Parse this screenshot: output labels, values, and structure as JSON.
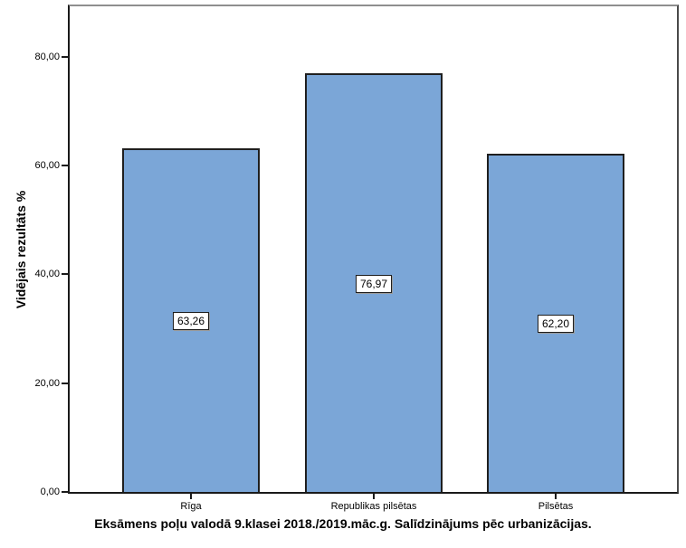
{
  "chart_data": {
    "type": "bar",
    "title": "Eksāmens poļu valodā 9.klasei 2018./2019.māc.g. Salīdzinājums pēc urbanizācijas.",
    "ylabel": "Vidējais rezultāts %",
    "xlabel": "",
    "categories": [
      "Rīga",
      "Republikas pilsētas",
      "Pilsētas"
    ],
    "values": [
      63.26,
      76.97,
      62.2
    ],
    "value_labels": [
      "63,26",
      "76,97",
      "62,20"
    ],
    "y_ticks": [
      {
        "value": 0,
        "label": "0,00"
      },
      {
        "value": 20,
        "label": "20,00"
      },
      {
        "value": 40,
        "label": "40,00"
      },
      {
        "value": 60,
        "label": "60,00"
      },
      {
        "value": 80,
        "label": "80,00"
      }
    ],
    "ylim": [
      0,
      89.3
    ],
    "grid": false,
    "legend": "none",
    "bar_color": "#7BA6D7",
    "bar_border_color": "#1f1f1f",
    "value_label_box_bg": "#FFFFFF",
    "value_label_box_border": "#1C1C1C",
    "frame_top_color": "#8F8F8F",
    "frame_right_color": "#4A4A4A",
    "axis_color": "#1A1A1A"
  }
}
